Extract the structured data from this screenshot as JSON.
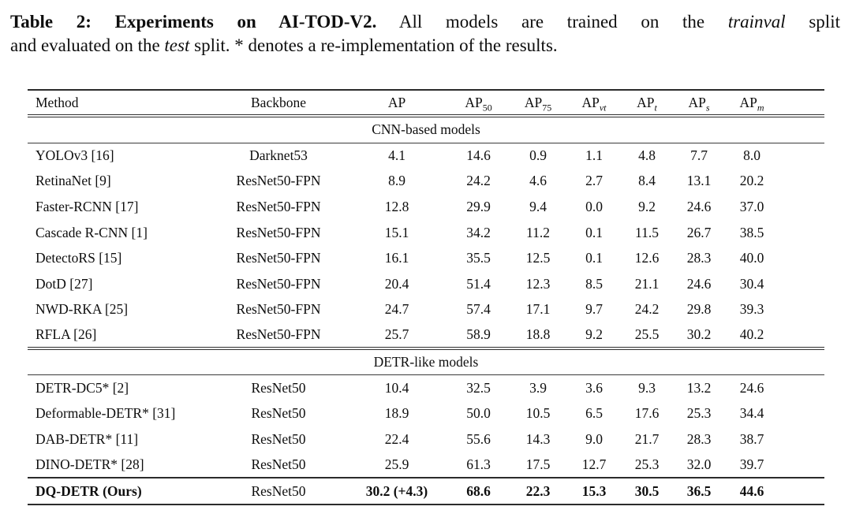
{
  "caption": {
    "line1": {
      "bold": "Table 2: Experiments on AI-TOD-V2.",
      "seg1": "All models are trained on the",
      "italic": "trainval",
      "seg2": "split"
    },
    "line2": {
      "seg1": "and evaluated on the",
      "italic": "test",
      "seg2": "split. * denotes a re-implementation of the results."
    }
  },
  "table": {
    "columns": [
      {
        "label": "Method",
        "sub": ""
      },
      {
        "label": "Backbone",
        "sub": ""
      },
      {
        "label": "AP",
        "sub": ""
      },
      {
        "label": "AP",
        "sub": "50"
      },
      {
        "label": "AP",
        "sub": "75"
      },
      {
        "label": "AP",
        "sub": "vt"
      },
      {
        "label": "AP",
        "sub": "t"
      },
      {
        "label": "AP",
        "sub": "s"
      },
      {
        "label": "AP",
        "sub": "m"
      }
    ],
    "sections": [
      {
        "title": "CNN-based models",
        "rows": [
          [
            "YOLOv3 [16]",
            "Darknet53",
            "4.1",
            "14.6",
            "0.9",
            "1.1",
            "4.8",
            "7.7",
            "8.0"
          ],
          [
            "RetinaNet [9]",
            "ResNet50-FPN",
            "8.9",
            "24.2",
            "4.6",
            "2.7",
            "8.4",
            "13.1",
            "20.2"
          ],
          [
            "Faster-RCNN [17]",
            "ResNet50-FPN",
            "12.8",
            "29.9",
            "9.4",
            "0.0",
            "9.2",
            "24.6",
            "37.0"
          ],
          [
            "Cascade R-CNN [1]",
            "ResNet50-FPN",
            "15.1",
            "34.2",
            "11.2",
            "0.1",
            "11.5",
            "26.7",
            "38.5"
          ],
          [
            "DetectoRS [15]",
            "ResNet50-FPN",
            "16.1",
            "35.5",
            "12.5",
            "0.1",
            "12.6",
            "28.3",
            "40.0"
          ],
          [
            "DotD [27]",
            "ResNet50-FPN",
            "20.4",
            "51.4",
            "12.3",
            "8.5",
            "21.1",
            "24.6",
            "30.4"
          ],
          [
            "NWD-RKA [25]",
            "ResNet50-FPN",
            "24.7",
            "57.4",
            "17.1",
            "9.7",
            "24.2",
            "29.8",
            "39.3"
          ],
          [
            "RFLA [26]",
            "ResNet50-FPN",
            "25.7",
            "58.9",
            "18.8",
            "9.2",
            "25.5",
            "30.2",
            "40.2"
          ]
        ]
      },
      {
        "title": "DETR-like models",
        "rows": [
          [
            "DETR-DC5* [2]",
            "ResNet50",
            "10.4",
            "32.5",
            "3.9",
            "3.6",
            "9.3",
            "13.2",
            "24.6"
          ],
          [
            "Deformable-DETR* [31]",
            "ResNet50",
            "18.9",
            "50.0",
            "10.5",
            "6.5",
            "17.6",
            "25.3",
            "34.4"
          ],
          [
            "DAB-DETR* [11]",
            "ResNet50",
            "22.4",
            "55.6",
            "14.3",
            "9.0",
            "21.7",
            "28.3",
            "38.7"
          ],
          [
            "DINO-DETR* [28]",
            "ResNet50",
            "25.9",
            "61.3",
            "17.5",
            "12.7",
            "25.3",
            "32.0",
            "39.7"
          ]
        ]
      }
    ],
    "highlight_rows": [
      [
        "DQ-DETR (Ours)",
        "ResNet50",
        "30.2 (+4.3)",
        "68.6",
        "22.3",
        "15.3",
        "30.5",
        "36.5",
        "44.6"
      ]
    ]
  }
}
